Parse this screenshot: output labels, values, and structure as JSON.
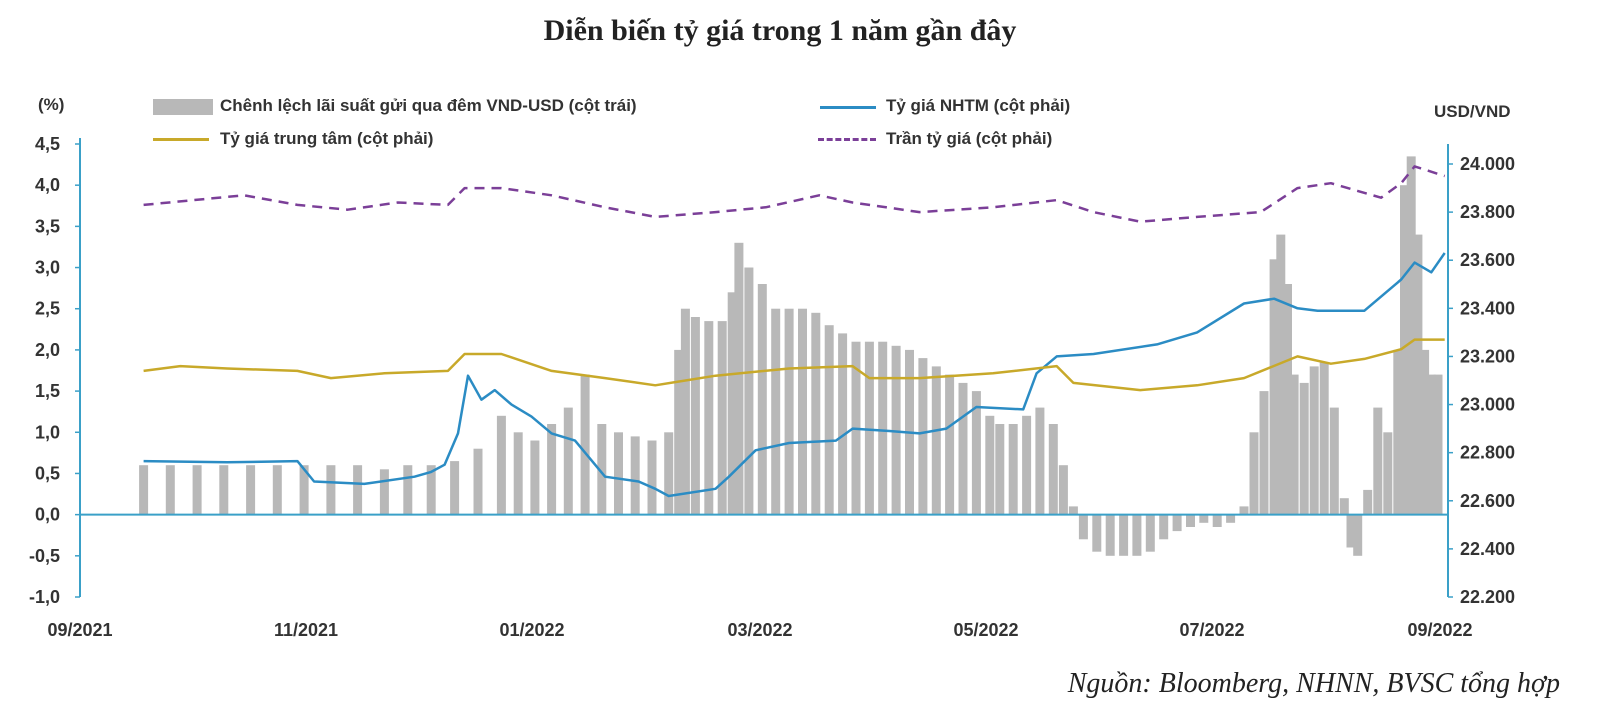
{
  "title": "Diễn biến tỷ giá trong 1 năm gần đây",
  "source": "Nguồn: Bloomberg, NHNN, BVSC tổng hợp",
  "left_unit": "(%)",
  "right_unit": "USD/VND",
  "colors": {
    "bar": "#b8b8b8",
    "nhtm": "#2b8cc4",
    "central": "#c8a92a",
    "ceiling": "#7b3f98",
    "axis": "#3aa0c8"
  },
  "legend": {
    "bar": "Chênh lệch lãi suất gửi qua đêm VND-USD (cột trái)",
    "nhtm": "Tỷ giá NHTM (cột phải)",
    "central": "Tỷ giá trung tâm (cột phải)",
    "ceiling": "Trần tỷ giá (cột phải)"
  },
  "chart_data": {
    "type": "bar+line",
    "title": "Diễn biến tỷ giá trong 1 năm gần đây",
    "x_ticks": [
      "09/2021",
      "11/2021",
      "01/2022",
      "03/2022",
      "05/2022",
      "07/2022",
      "09/2022"
    ],
    "left_axis": {
      "label": "(%)",
      "ylim": [
        -1.0,
        4.5
      ],
      "ticks": [
        "4,5",
        "4,0",
        "3,5",
        "3,0",
        "2,5",
        "2,0",
        "1,5",
        "1,0",
        "0,5",
        "0,0",
        "-0,5",
        "-1,0"
      ]
    },
    "right_axis": {
      "label": "USD/VND",
      "ylim": [
        22200,
        24100
      ],
      "ticks": [
        "24.000",
        "23.800",
        "23.600",
        "23.400",
        "23.200",
        "23.000",
        "22.800",
        "22.600",
        "22.400",
        "22.200"
      ]
    },
    "bar_series": {
      "name": "Chênh lệch lãi suất gửi qua đêm VND-USD (cột trái)",
      "axis": "left",
      "points": [
        [
          "2021-09-20",
          0.6
        ],
        [
          "2021-09-28",
          0.6
        ],
        [
          "2021-10-06",
          0.6
        ],
        [
          "2021-10-14",
          0.6
        ],
        [
          "2021-10-22",
          0.6
        ],
        [
          "2021-10-30",
          0.6
        ],
        [
          "2021-11-07",
          0.6
        ],
        [
          "2021-11-15",
          0.6
        ],
        [
          "2021-11-23",
          0.6
        ],
        [
          "2021-12-01",
          0.55
        ],
        [
          "2021-12-08",
          0.6
        ],
        [
          "2021-12-15",
          0.6
        ],
        [
          "2021-12-22",
          0.65
        ],
        [
          "2021-12-29",
          0.8
        ],
        [
          "2022-01-05",
          1.2
        ],
        [
          "2022-01-10",
          1.0
        ],
        [
          "2022-01-15",
          0.9
        ],
        [
          "2022-01-20",
          1.1
        ],
        [
          "2022-01-25",
          1.3
        ],
        [
          "2022-01-30",
          1.7
        ],
        [
          "2022-02-04",
          1.1
        ],
        [
          "2022-02-09",
          1.0
        ],
        [
          "2022-02-14",
          0.95
        ],
        [
          "2022-02-19",
          0.9
        ],
        [
          "2022-02-24",
          1.0
        ],
        [
          "2022-02-27",
          2.0
        ],
        [
          "2022-03-01",
          2.5
        ],
        [
          "2022-03-04",
          2.4
        ],
        [
          "2022-03-08",
          2.35
        ],
        [
          "2022-03-12",
          2.35
        ],
        [
          "2022-03-15",
          2.7
        ],
        [
          "2022-03-17",
          3.3
        ],
        [
          "2022-03-20",
          3.0
        ],
        [
          "2022-03-24",
          2.8
        ],
        [
          "2022-03-28",
          2.5
        ],
        [
          "2022-04-01",
          2.5
        ],
        [
          "2022-04-05",
          2.5
        ],
        [
          "2022-04-09",
          2.45
        ],
        [
          "2022-04-13",
          2.3
        ],
        [
          "2022-04-17",
          2.2
        ],
        [
          "2022-04-21",
          2.1
        ],
        [
          "2022-04-25",
          2.1
        ],
        [
          "2022-04-29",
          2.1
        ],
        [
          "2022-05-03",
          2.05
        ],
        [
          "2022-05-07",
          2.0
        ],
        [
          "2022-05-11",
          1.9
        ],
        [
          "2022-05-15",
          1.8
        ],
        [
          "2022-05-19",
          1.7
        ],
        [
          "2022-05-23",
          1.6
        ],
        [
          "2022-05-27",
          1.5
        ],
        [
          "2022-05-31",
          1.2
        ],
        [
          "2022-06-03",
          1.1
        ],
        [
          "2022-06-07",
          1.1
        ],
        [
          "2022-06-11",
          1.2
        ],
        [
          "2022-06-15",
          1.3
        ],
        [
          "2022-06-19",
          1.1
        ],
        [
          "2022-06-22",
          0.6
        ],
        [
          "2022-06-25",
          0.1
        ],
        [
          "2022-06-28",
          -0.3
        ],
        [
          "2022-07-02",
          -0.45
        ],
        [
          "2022-07-06",
          -0.5
        ],
        [
          "2022-07-10",
          -0.5
        ],
        [
          "2022-07-14",
          -0.5
        ],
        [
          "2022-07-18",
          -0.45
        ],
        [
          "2022-07-22",
          -0.3
        ],
        [
          "2022-07-26",
          -0.2
        ],
        [
          "2022-07-30",
          -0.15
        ],
        [
          "2022-08-03",
          -0.1
        ],
        [
          "2022-08-07",
          -0.15
        ],
        [
          "2022-08-11",
          -0.1
        ],
        [
          "2022-08-15",
          0.1
        ],
        [
          "2022-08-18",
          1.0
        ],
        [
          "2022-08-21",
          1.5
        ],
        [
          "2022-08-24",
          3.1
        ],
        [
          "2022-08-26",
          3.4
        ],
        [
          "2022-08-28",
          2.8
        ],
        [
          "2022-08-30",
          1.7
        ],
        [
          "2022-09-02",
          1.6
        ],
        [
          "2022-09-05",
          1.8
        ],
        [
          "2022-09-08",
          1.85
        ],
        [
          "2022-09-11",
          1.3
        ],
        [
          "2022-09-14",
          0.2
        ],
        [
          "2022-09-16",
          -0.4
        ],
        [
          "2022-09-18",
          -0.5
        ],
        [
          "2022-09-21",
          0.3
        ],
        [
          "2022-09-24",
          1.3
        ],
        [
          "2022-09-27",
          1.0
        ],
        [
          "2022-09-30",
          2.0
        ],
        [
          "2022-10-02",
          4.0
        ],
        [
          "2022-10-04",
          4.35
        ],
        [
          "2022-10-06",
          3.4
        ],
        [
          "2022-10-08",
          2.0
        ],
        [
          "2022-10-10",
          1.7
        ],
        [
          "2022-10-12",
          1.7
        ]
      ]
    },
    "series": [
      {
        "name": "Tỷ giá NHTM (cột phải)",
        "axis": "right",
        "points": [
          [
            "2021-09-20",
            22765
          ],
          [
            "2021-10-15",
            22760
          ],
          [
            "2021-11-05",
            22765
          ],
          [
            "2021-11-10",
            22680
          ],
          [
            "2021-11-25",
            22670
          ],
          [
            "2021-12-10",
            22700
          ],
          [
            "2021-12-15",
            22720
          ],
          [
            "2021-12-19",
            22750
          ],
          [
            "2021-12-23",
            22880
          ],
          [
            "2021-12-26",
            23120
          ],
          [
            "2021-12-30",
            23020
          ],
          [
            "2022-01-03",
            23060
          ],
          [
            "2022-01-08",
            23000
          ],
          [
            "2022-01-14",
            22950
          ],
          [
            "2022-01-20",
            22880
          ],
          [
            "2022-01-27",
            22850
          ],
          [
            "2022-02-05",
            22700
          ],
          [
            "2022-02-15",
            22680
          ],
          [
            "2022-02-20",
            22650
          ],
          [
            "2022-02-24",
            22620
          ],
          [
            "2022-03-10",
            22650
          ],
          [
            "2022-03-14",
            22700
          ],
          [
            "2022-03-22",
            22810
          ],
          [
            "2022-04-01",
            22840
          ],
          [
            "2022-04-15",
            22850
          ],
          [
            "2022-04-20",
            22900
          ],
          [
            "2022-05-01",
            22890
          ],
          [
            "2022-05-10",
            22880
          ],
          [
            "2022-05-18",
            22900
          ],
          [
            "2022-05-27",
            22990
          ],
          [
            "2022-06-10",
            22980
          ],
          [
            "2022-06-14",
            23130
          ],
          [
            "2022-06-20",
            23200
          ],
          [
            "2022-07-01",
            23210
          ],
          [
            "2022-07-20",
            23250
          ],
          [
            "2022-08-01",
            23300
          ],
          [
            "2022-08-15",
            23420
          ],
          [
            "2022-08-24",
            23440
          ],
          [
            "2022-08-31",
            23400
          ],
          [
            "2022-09-06",
            23390
          ],
          [
            "2022-09-20",
            23390
          ],
          [
            "2022-10-01",
            23520
          ],
          [
            "2022-10-05",
            23590
          ],
          [
            "2022-10-10",
            23550
          ],
          [
            "2022-10-14",
            23630
          ]
        ]
      },
      {
        "name": "Tỷ giá trung tâm (cột phải)",
        "axis": "right",
        "points": [
          [
            "2021-09-20",
            23140
          ],
          [
            "2021-10-01",
            23160
          ],
          [
            "2021-10-15",
            23150
          ],
          [
            "2021-11-05",
            23140
          ],
          [
            "2021-11-15",
            23110
          ],
          [
            "2021-12-01",
            23130
          ],
          [
            "2021-12-20",
            23140
          ],
          [
            "2021-12-25",
            23210
          ],
          [
            "2022-01-05",
            23210
          ],
          [
            "2022-01-20",
            23140
          ],
          [
            "2022-02-05",
            23110
          ],
          [
            "2022-02-20",
            23080
          ],
          [
            "2022-03-10",
            23120
          ],
          [
            "2022-04-01",
            23150
          ],
          [
            "2022-04-20",
            23160
          ],
          [
            "2022-04-25",
            23110
          ],
          [
            "2022-05-10",
            23110
          ],
          [
            "2022-06-01",
            23130
          ],
          [
            "2022-06-20",
            23160
          ],
          [
            "2022-06-25",
            23090
          ],
          [
            "2022-07-15",
            23060
          ],
          [
            "2022-08-01",
            23080
          ],
          [
            "2022-08-15",
            23110
          ],
          [
            "2022-08-31",
            23200
          ],
          [
            "2022-09-10",
            23170
          ],
          [
            "2022-09-20",
            23190
          ],
          [
            "2022-10-01",
            23230
          ],
          [
            "2022-10-05",
            23270
          ],
          [
            "2022-10-14",
            23270
          ]
        ]
      },
      {
        "name": "Trần tỷ giá (cột phải)",
        "axis": "right",
        "points": [
          [
            "2021-09-20",
            23830
          ],
          [
            "2021-10-05",
            23850
          ],
          [
            "2021-10-20",
            23870
          ],
          [
            "2021-11-05",
            23830
          ],
          [
            "2021-11-20",
            23810
          ],
          [
            "2021-12-05",
            23840
          ],
          [
            "2021-12-20",
            23830
          ],
          [
            "2021-12-25",
            23900
          ],
          [
            "2022-01-05",
            23900
          ],
          [
            "2022-01-20",
            23870
          ],
          [
            "2022-02-05",
            23820
          ],
          [
            "2022-02-20",
            23780
          ],
          [
            "2022-03-10",
            23800
          ],
          [
            "2022-03-25",
            23820
          ],
          [
            "2022-04-10",
            23870
          ],
          [
            "2022-04-20",
            23840
          ],
          [
            "2022-05-10",
            23800
          ],
          [
            "2022-06-01",
            23820
          ],
          [
            "2022-06-20",
            23850
          ],
          [
            "2022-07-01",
            23800
          ],
          [
            "2022-07-15",
            23760
          ],
          [
            "2022-08-01",
            23780
          ],
          [
            "2022-08-20",
            23800
          ],
          [
            "2022-08-31",
            23900
          ],
          [
            "2022-09-10",
            23920
          ],
          [
            "2022-09-25",
            23860
          ],
          [
            "2022-10-01",
            23920
          ],
          [
            "2022-10-05",
            23990
          ],
          [
            "2022-10-14",
            23950
          ]
        ]
      }
    ]
  }
}
